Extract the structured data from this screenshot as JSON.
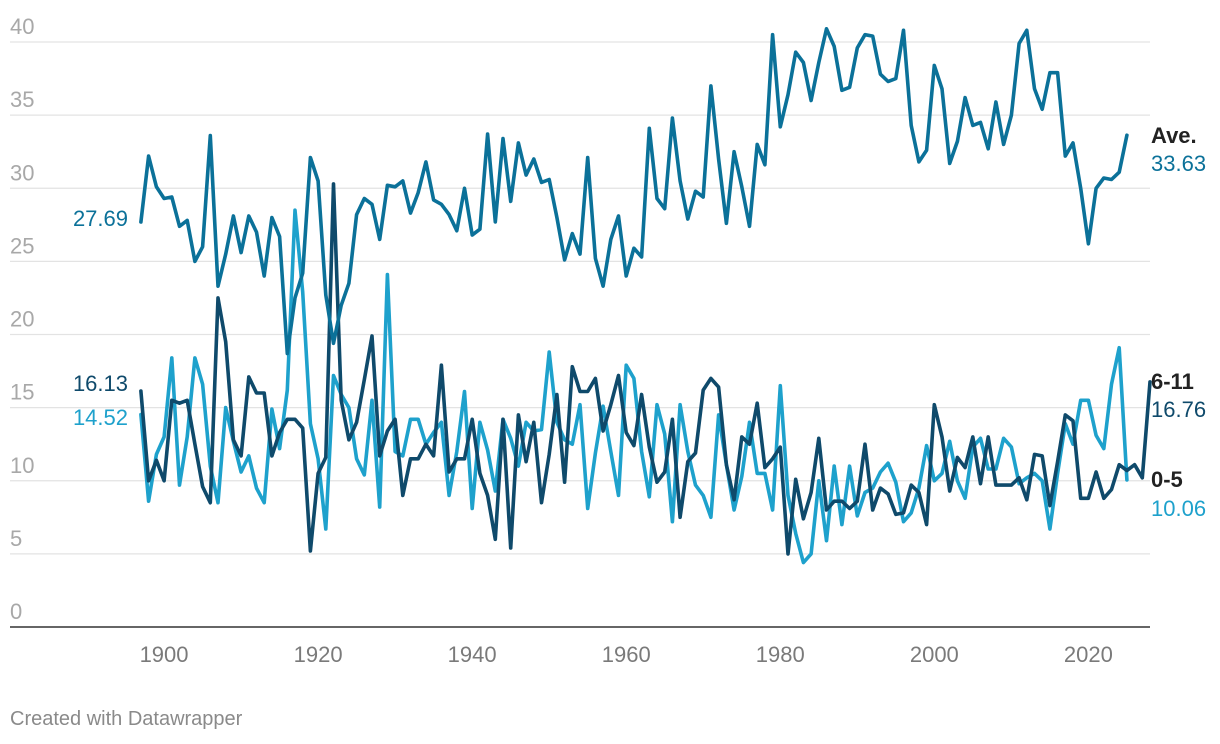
{
  "chart_data": {
    "type": "line",
    "title": "",
    "xlabel": "",
    "ylabel": "",
    "xlim": [
      1880,
      2028
    ],
    "ylim": [
      0,
      40
    ],
    "x_ticks": [
      1900,
      1920,
      1940,
      1960,
      1980,
      2000,
      2020
    ],
    "y_ticks": [
      0,
      5,
      10,
      15,
      20,
      25,
      30,
      35,
      40
    ],
    "grid": true,
    "legend": "direct labels at line ends",
    "x_start": 1897,
    "series": [
      {
        "name": "Ave.",
        "color": "#0b7199",
        "start_label": "27.69",
        "end_label": "33.63",
        "values": [
          27.69,
          32.2,
          30.1,
          29.3,
          29.4,
          27.4,
          27.8,
          25.0,
          26.0,
          33.6,
          23.3,
          25.5,
          28.1,
          25.6,
          28.1,
          27.0,
          24.0,
          28.0,
          26.7,
          18.7,
          22.5,
          24.2,
          32.1,
          30.5,
          22.7,
          19.4,
          22.0,
          23.5,
          28.2,
          29.3,
          28.9,
          26.5,
          30.2,
          30.1,
          30.5,
          28.3,
          29.7,
          31.8,
          29.2,
          28.9,
          28.2,
          27.1,
          30.0,
          26.8,
          27.2,
          33.7,
          27.7,
          33.4,
          29.1,
          33.1,
          30.9,
          32.0,
          30.4,
          30.6,
          28.0,
          25.1,
          26.9,
          25.5,
          32.1,
          25.2,
          23.3,
          26.5,
          28.1,
          24.0,
          25.9,
          25.3,
          34.1,
          29.3,
          28.6,
          34.8,
          30.5,
          27.9,
          29.8,
          29.4,
          37.0,
          32.0,
          27.6,
          32.5,
          30.1,
          27.4,
          33.0,
          31.6,
          40.5,
          34.2,
          36.4,
          39.3,
          38.6,
          36.0,
          38.6,
          40.9,
          39.7,
          36.7,
          36.9,
          39.6,
          40.5,
          40.4,
          37.8,
          37.3,
          37.5,
          40.8,
          34.3,
          31.8,
          32.6,
          38.4,
          36.8,
          31.7,
          33.2,
          36.2,
          34.3,
          34.5,
          32.7,
          35.9,
          33.0,
          35.0,
          39.9,
          40.8,
          36.8,
          35.4,
          37.9,
          37.9,
          32.2,
          33.1,
          30.0,
          26.2,
          30.0,
          30.7,
          30.6,
          31.1,
          33.63
        ]
      },
      {
        "name": "6-11",
        "color": "#0f4a6b",
        "start_label": "16.13",
        "end_label": "16.76",
        "values": [
          16.13,
          10.0,
          11.4,
          10.0,
          15.5,
          15.3,
          15.5,
          12.5,
          9.6,
          8.5,
          22.5,
          19.5,
          12.8,
          11.7,
          17.1,
          16.0,
          16.0,
          11.7,
          13.3,
          14.2,
          14.2,
          13.6,
          5.2,
          10.5,
          11.6,
          30.3,
          15.5,
          12.8,
          14.0,
          16.9,
          19.9,
          11.7,
          13.4,
          14.2,
          9.0,
          11.5,
          11.5,
          12.5,
          11.7,
          17.9,
          10.6,
          11.5,
          11.5,
          14.2,
          10.5,
          9.0,
          6.0,
          14.2,
          5.4,
          14.5,
          11.3,
          14.0,
          8.5,
          11.8,
          15.9,
          9.9,
          17.8,
          16.1,
          16.1,
          17.0,
          13.4,
          15.2,
          17.2,
          13.3,
          12.4,
          15.9,
          12.3,
          9.9,
          10.6,
          14.2,
          7.5,
          11.3,
          11.9,
          16.2,
          17.0,
          16.4,
          11.1,
          8.7,
          13.0,
          12.5,
          15.3,
          10.9,
          11.5,
          12.3,
          5.0,
          10.1,
          7.4,
          9.2,
          12.9,
          8.0,
          8.6,
          8.6,
          8.1,
          8.6,
          12.5,
          8.0,
          9.5,
          9.1,
          7.7,
          7.8,
          9.7,
          9.2,
          7.0,
          15.2,
          13.0,
          9.3,
          11.6,
          10.9,
          13.0,
          9.8,
          13.0,
          9.7,
          9.7,
          9.7,
          10.2,
          8.7,
          11.8,
          11.7,
          8.3,
          11.3,
          14.5,
          14.1,
          8.8,
          8.8,
          10.6,
          8.8,
          9.4,
          11.1,
          10.7,
          11.1,
          10.2,
          16.76
        ]
      },
      {
        "name": "0-5",
        "color": "#1ea1cc",
        "start_label": "14.52",
        "end_label": "10.06",
        "values": [
          14.52,
          8.6,
          11.8,
          13.0,
          18.4,
          9.7,
          13.0,
          18.4,
          16.6,
          11.0,
          8.5,
          15.0,
          12.7,
          10.6,
          11.7,
          9.5,
          8.5,
          14.9,
          12.2,
          16.2,
          28.5,
          22.9,
          13.9,
          11.5,
          6.7,
          17.2,
          15.9,
          15.0,
          11.5,
          10.4,
          15.5,
          8.2,
          24.1,
          12.0,
          11.7,
          14.2,
          14.2,
          12.5,
          13.3,
          14.0,
          9.0,
          12.0,
          16.1,
          8.1,
          14.0,
          12.1,
          9.3,
          14.2,
          12.9,
          11.0,
          14.0,
          13.4,
          13.5,
          18.8,
          14.0,
          12.8,
          12.5,
          15.2,
          8.1,
          11.9,
          15.1,
          12.0,
          9.0,
          17.9,
          17.0,
          12.0,
          8.9,
          15.2,
          13.2,
          7.2,
          15.2,
          12.0,
          9.7,
          9.0,
          7.5,
          14.5,
          11.1,
          8.0,
          10.3,
          14.0,
          10.5,
          10.5,
          8.0,
          16.5,
          9.0,
          6.4,
          4.4,
          5.0,
          10.0,
          5.9,
          11.0,
          7.0,
          11.0,
          7.6,
          9.2,
          9.5,
          10.6,
          11.2,
          9.9,
          7.2,
          7.8,
          9.5,
          12.4,
          10.0,
          10.5,
          12.7,
          10.0,
          8.8,
          12.3,
          12.9,
          10.8,
          10.8,
          12.9,
          12.3,
          9.8,
          10.2,
          10.5,
          10.0,
          6.7,
          10.5,
          13.9,
          12.5,
          15.5,
          15.5,
          13.1,
          12.2,
          16.6,
          19.1,
          10.06
        ]
      }
    ]
  },
  "footer": {
    "credit": "Created with Datawrapper"
  }
}
